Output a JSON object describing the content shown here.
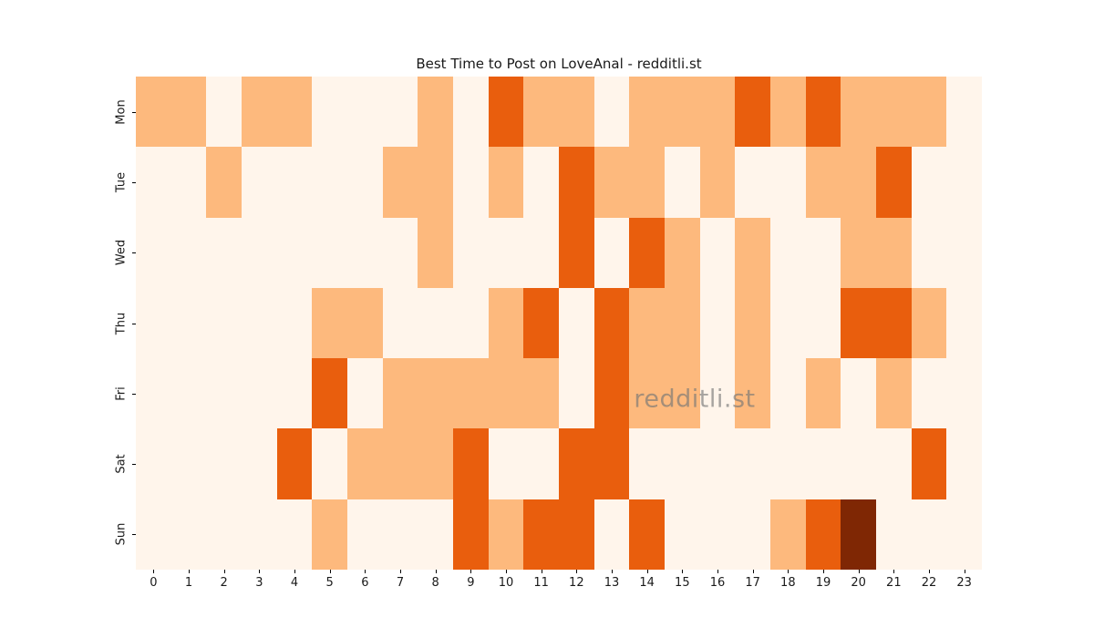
{
  "title": "Best Time to Post on LoveAnal - redditli.st",
  "watermark": "redditli.st",
  "chart_data": {
    "type": "heatmap",
    "title": "Best Time to Post on LoveAnal - redditli.st",
    "xlabel": "",
    "ylabel": "",
    "x_labels": [
      "0",
      "1",
      "2",
      "3",
      "4",
      "5",
      "6",
      "7",
      "8",
      "9",
      "10",
      "11",
      "12",
      "13",
      "14",
      "15",
      "16",
      "17",
      "18",
      "19",
      "20",
      "21",
      "22",
      "23"
    ],
    "y_labels": [
      "Mon",
      "Tue",
      "Wed",
      "Thu",
      "Fri",
      "Sat",
      "Sun"
    ],
    "colormap": "Oranges",
    "legend": "none",
    "grid": "off",
    "level_colors": [
      "#fff5eb",
      "#fdb97d",
      "#e95e0d",
      "#7f2704"
    ],
    "value_levels": [
      0,
      1,
      2,
      3
    ],
    "values": [
      [
        1,
        1,
        0,
        1,
        1,
        0,
        0,
        0,
        1,
        0,
        2,
        1,
        1,
        0,
        1,
        1,
        1,
        2,
        1,
        2,
        1,
        1,
        1,
        0
      ],
      [
        0,
        0,
        1,
        0,
        0,
        0,
        0,
        1,
        1,
        0,
        1,
        0,
        2,
        1,
        1,
        0,
        1,
        0,
        0,
        1,
        1,
        2,
        0,
        0
      ],
      [
        0,
        0,
        0,
        0,
        0,
        0,
        0,
        0,
        1,
        0,
        0,
        0,
        2,
        0,
        2,
        1,
        0,
        1,
        0,
        0,
        1,
        1,
        0,
        0
      ],
      [
        0,
        0,
        0,
        0,
        0,
        1,
        1,
        0,
        0,
        0,
        1,
        2,
        0,
        2,
        1,
        1,
        0,
        1,
        0,
        0,
        2,
        2,
        1,
        0
      ],
      [
        0,
        0,
        0,
        0,
        0,
        2,
        0,
        1,
        1,
        1,
        1,
        1,
        0,
        2,
        1,
        1,
        0,
        1,
        0,
        1,
        0,
        1,
        0,
        0
      ],
      [
        0,
        0,
        0,
        0,
        2,
        0,
        1,
        1,
        1,
        2,
        0,
        0,
        2,
        2,
        0,
        0,
        0,
        0,
        0,
        0,
        0,
        0,
        2,
        0
      ],
      [
        0,
        0,
        0,
        0,
        0,
        1,
        0,
        0,
        0,
        2,
        1,
        2,
        2,
        0,
        2,
        0,
        0,
        0,
        1,
        2,
        3,
        0,
        0,
        0
      ]
    ]
  }
}
